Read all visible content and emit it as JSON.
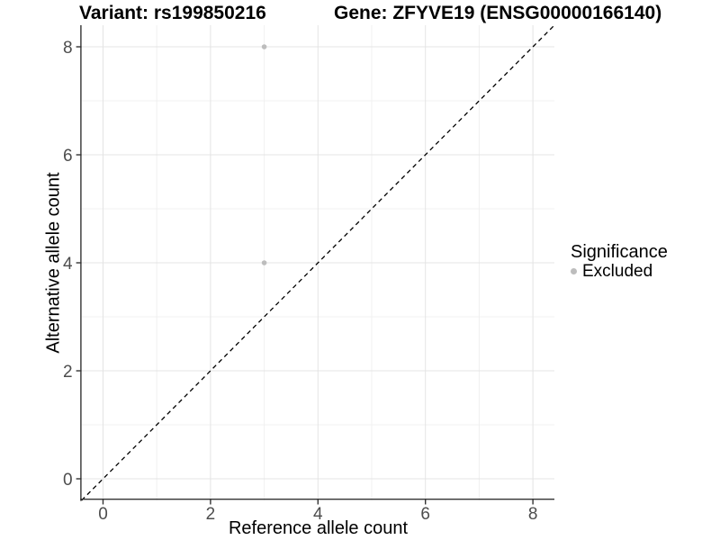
{
  "colors": {
    "background": "#ffffff",
    "point": "#bdbdbd",
    "grid_major": "#e4e4e4",
    "grid_minor": "#f0f0f0",
    "axis_line": "#333333",
    "tick_mark": "#333333",
    "tick_label": "#4d4d4d",
    "title_text": "#000000",
    "reference_line": "#000000"
  },
  "chart_data": {
    "type": "scatter",
    "title_left": "Variant: rs199850216",
    "title_right": "Gene: ZFYVE19 (ENSG00000166140)",
    "xlabel": "Reference allele count",
    "ylabel": "Alternative allele count",
    "xlim": [
      -0.4,
      8.4
    ],
    "ylim": [
      -0.4,
      8.4
    ],
    "xticks": [
      0,
      2,
      4,
      6,
      8
    ],
    "yticks": [
      0,
      2,
      4,
      6,
      8
    ],
    "minor_xticks": [
      1,
      3,
      5,
      7
    ],
    "minor_yticks": [
      1,
      3,
      5,
      7
    ],
    "grid": true,
    "legend": {
      "position": "right",
      "title": "Significance",
      "items": [
        {
          "label": "Excluded",
          "color": "#bdbdbd"
        }
      ]
    },
    "series": [
      {
        "name": "Excluded",
        "color": "#bdbdbd",
        "points": [
          [
            3,
            8
          ],
          [
            3,
            4
          ]
        ]
      }
    ],
    "reference_line": {
      "style": "dashed",
      "slope": 1,
      "intercept": 0,
      "color": "#000000"
    }
  }
}
